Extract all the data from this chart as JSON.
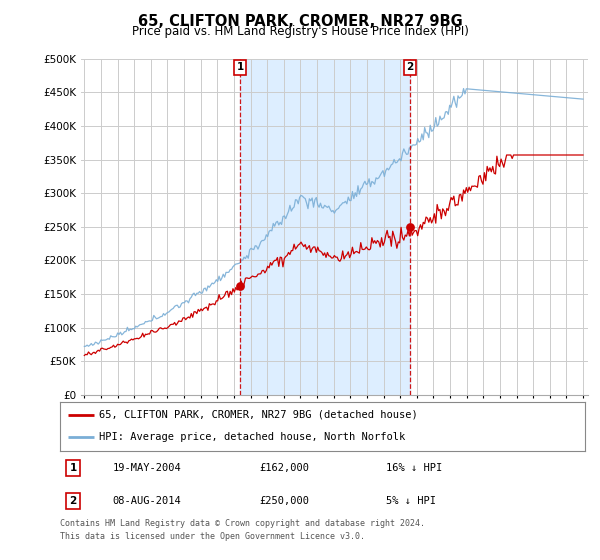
{
  "title": "65, CLIFTON PARK, CROMER, NR27 9BG",
  "subtitle": "Price paid vs. HM Land Registry's House Price Index (HPI)",
  "ylim": [
    0,
    500000
  ],
  "yticks": [
    0,
    50000,
    100000,
    150000,
    200000,
    250000,
    300000,
    350000,
    400000,
    450000,
    500000
  ],
  "ytick_labels": [
    "£0",
    "£50K",
    "£100K",
    "£150K",
    "£200K",
    "£250K",
    "£300K",
    "£350K",
    "£400K",
    "£450K",
    "£500K"
  ],
  "hpi_color": "#7aaed6",
  "price_color": "#cc0000",
  "marker_color": "#cc0000",
  "dashed_line_color": "#cc0000",
  "shade_color": "#ddeeff",
  "bg_color": "#ffffff",
  "grid_color": "#cccccc",
  "transaction1_x": 2004.38,
  "transaction1_price": 162000,
  "transaction1_hpi_diff": "16% ↓ HPI",
  "transaction1_date": "19-MAY-2004",
  "transaction2_x": 2014.6,
  "transaction2_price": 250000,
  "transaction2_hpi_diff": "5% ↓ HPI",
  "transaction2_date": "08-AUG-2014",
  "legend_label1": "65, CLIFTON PARK, CROMER, NR27 9BG (detached house)",
  "legend_label2": "HPI: Average price, detached house, North Norfolk",
  "footer1": "Contains HM Land Registry data © Crown copyright and database right 2024.",
  "footer2": "This data is licensed under the Open Government Licence v3.0.",
  "start_year": 1995,
  "end_year": 2025
}
